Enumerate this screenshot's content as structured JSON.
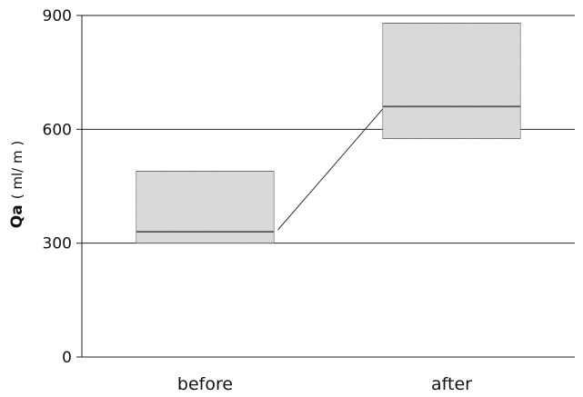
{
  "chart_data": {
    "type": "box",
    "title": "",
    "xlabel": "",
    "ylabel": "Qa",
    "ylabel_unit": "( ml/ m )",
    "ylim": [
      0,
      900
    ],
    "yticks": [
      0,
      300,
      600,
      900
    ],
    "grid": "horizontal",
    "categories": [
      "before",
      "after"
    ],
    "boxes": [
      {
        "category": "before",
        "q1": 300,
        "median": 330,
        "q3": 490
      },
      {
        "category": "after",
        "q1": 575,
        "median": 660,
        "q3": 880
      }
    ],
    "connector": {
      "from": "before",
      "to": "after",
      "y_from": 330,
      "y_to": 660
    },
    "colors": {
      "box_fill": "#dcdcdc",
      "box_stroke": "#555555",
      "grid": "#222222",
      "line": "#333333"
    }
  }
}
